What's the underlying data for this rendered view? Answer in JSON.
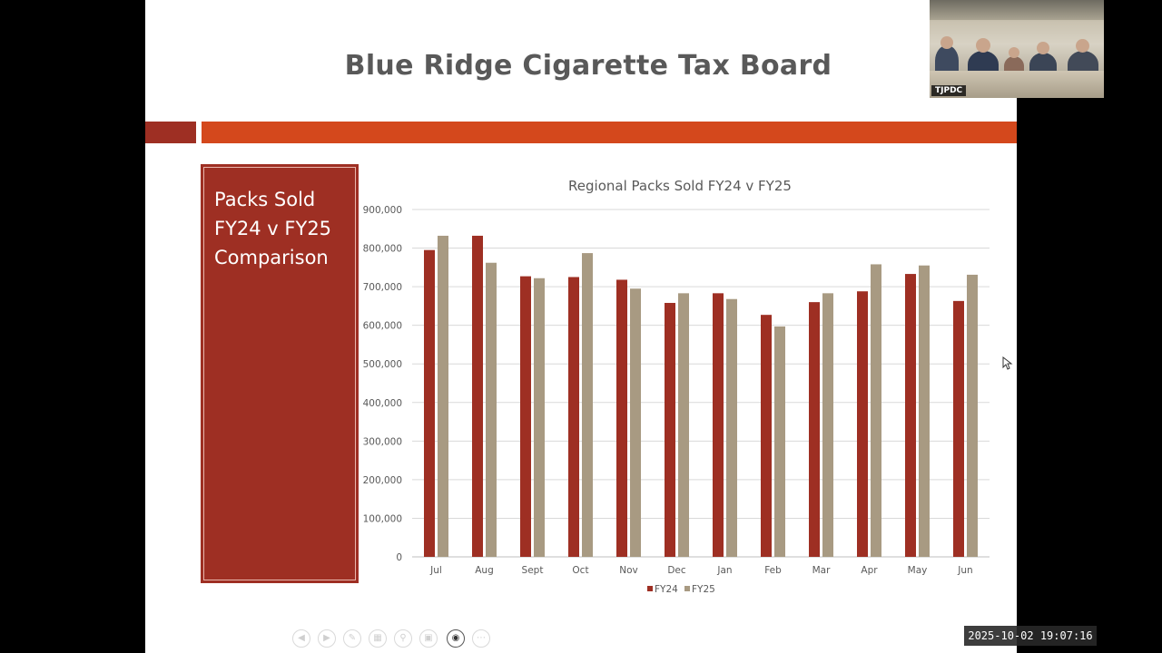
{
  "slide": {
    "title": "Blue Ridge Cigarette Tax Board",
    "side_box_text": "Packs Sold FY24 v FY25 Comparison"
  },
  "overlay": {
    "video_label": "TJPDC",
    "timestamp": "2025-10-02 19:07:16"
  },
  "colors": {
    "fy24": "#9e2f23",
    "fy25": "#a89a82",
    "accent_bar": "#d4481c",
    "title": "#595959"
  },
  "chart_data": {
    "type": "bar",
    "title": "Regional Packs Sold FY24 v FY25",
    "categories": [
      "Jul",
      "Aug",
      "Sept",
      "Oct",
      "Nov",
      "Dec",
      "Jan",
      "Feb",
      "Mar",
      "Apr",
      "May",
      "Jun"
    ],
    "series": [
      {
        "name": "FY24",
        "color": "#9e2f23",
        "values": [
          795000,
          832000,
          727000,
          725000,
          718000,
          658000,
          683000,
          627000,
          660000,
          688000,
          733000,
          663000
        ]
      },
      {
        "name": "FY25",
        "color": "#a89a82",
        "values": [
          832000,
          762000,
          722000,
          787000,
          695000,
          683000,
          668000,
          597000,
          683000,
          758000,
          755000,
          731000
        ]
      }
    ],
    "ylim": [
      0,
      900000
    ],
    "yticks": [
      0,
      100000,
      200000,
      300000,
      400000,
      500000,
      600000,
      700000,
      800000,
      900000
    ],
    "ytick_labels": [
      "0",
      "100,000",
      "200,000",
      "300,000",
      "400,000",
      "500,000",
      "600,000",
      "700,000",
      "800,000",
      "900,000"
    ],
    "grid": true,
    "legend_position": "bottom"
  }
}
